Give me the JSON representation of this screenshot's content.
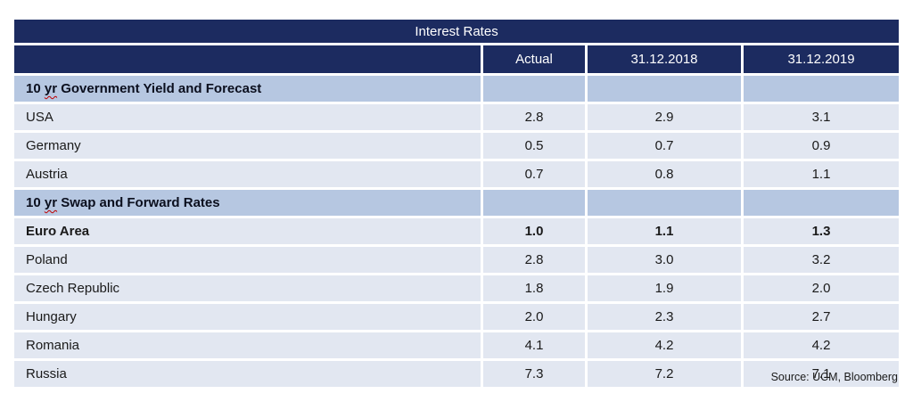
{
  "title": "Interest Rates",
  "header": {
    "col0": "",
    "col1": "Actual",
    "col2": "31.12.2018",
    "col3": "31.12.2019"
  },
  "rows": [
    {
      "type": "section",
      "label_pre": "10 ",
      "label_sc": "yr",
      "label_post": " Government Yield and Forecast"
    },
    {
      "type": "data",
      "label": "USA",
      "values": [
        "2.8",
        "2.9",
        "3.1"
      ]
    },
    {
      "type": "data",
      "label": "Germany",
      "values": [
        "0.5",
        "0.7",
        "0.9"
      ]
    },
    {
      "type": "data",
      "label": "Austria",
      "values": [
        "0.7",
        "0.8",
        "1.1"
      ]
    },
    {
      "type": "section",
      "label_pre": "10 ",
      "label_sc": "yr",
      "label_post": " Swap and Forward Rates"
    },
    {
      "type": "data",
      "label": "Euro Area",
      "bold": true,
      "values": [
        "1.0",
        "1.1",
        "1.3"
      ]
    },
    {
      "type": "data",
      "label": "Poland",
      "values": [
        "2.8",
        "3.0",
        "3.2"
      ]
    },
    {
      "type": "data",
      "label": "Czech Republic",
      "values": [
        "1.8",
        "1.9",
        "2.0"
      ]
    },
    {
      "type": "data",
      "label": "Hungary",
      "values": [
        "2.0",
        "2.3",
        "2.7"
      ]
    },
    {
      "type": "data",
      "label": "Romania",
      "values": [
        "4.1",
        "4.2",
        "4.2"
      ]
    },
    {
      "type": "data",
      "label": "Russia",
      "values": [
        "7.3",
        "7.2",
        "7.1"
      ]
    }
  ],
  "source_note": "Source: UCM, Bloomberg",
  "colors": {
    "header_bg": "#1c2b60",
    "section_bg": "#b6c7e1",
    "row_bg": "#e2e7f1",
    "header_text": "#ffffff",
    "body_text": "#1a1a1a",
    "spellcheck_underline": "#c00000"
  },
  "chart_data": {
    "type": "table",
    "title": "Interest Rates",
    "columns": [
      "",
      "Actual",
      "31.12.2018",
      "31.12.2019"
    ],
    "sections": [
      {
        "header": "10 yr Government Yield and Forecast",
        "rows": [
          {
            "label": "USA",
            "values": [
              2.8,
              2.9,
              3.1
            ]
          },
          {
            "label": "Germany",
            "values": [
              0.5,
              0.7,
              0.9
            ]
          },
          {
            "label": "Austria",
            "values": [
              0.7,
              0.8,
              1.1
            ]
          }
        ]
      },
      {
        "header": "10 yr Swap and Forward Rates",
        "rows": [
          {
            "label": "Euro Area",
            "values": [
              1.0,
              1.1,
              1.3
            ],
            "bold": true
          },
          {
            "label": "Poland",
            "values": [
              2.8,
              3.0,
              3.2
            ]
          },
          {
            "label": "Czech Republic",
            "values": [
              1.8,
              1.9,
              2.0
            ]
          },
          {
            "label": "Hungary",
            "values": [
              2.0,
              2.3,
              2.7
            ]
          },
          {
            "label": "Romania",
            "values": [
              4.1,
              4.2,
              4.2
            ]
          },
          {
            "label": "Russia",
            "values": [
              7.3,
              7.2,
              7.1
            ]
          }
        ]
      }
    ],
    "source": "Source: UCM, Bloomberg"
  }
}
